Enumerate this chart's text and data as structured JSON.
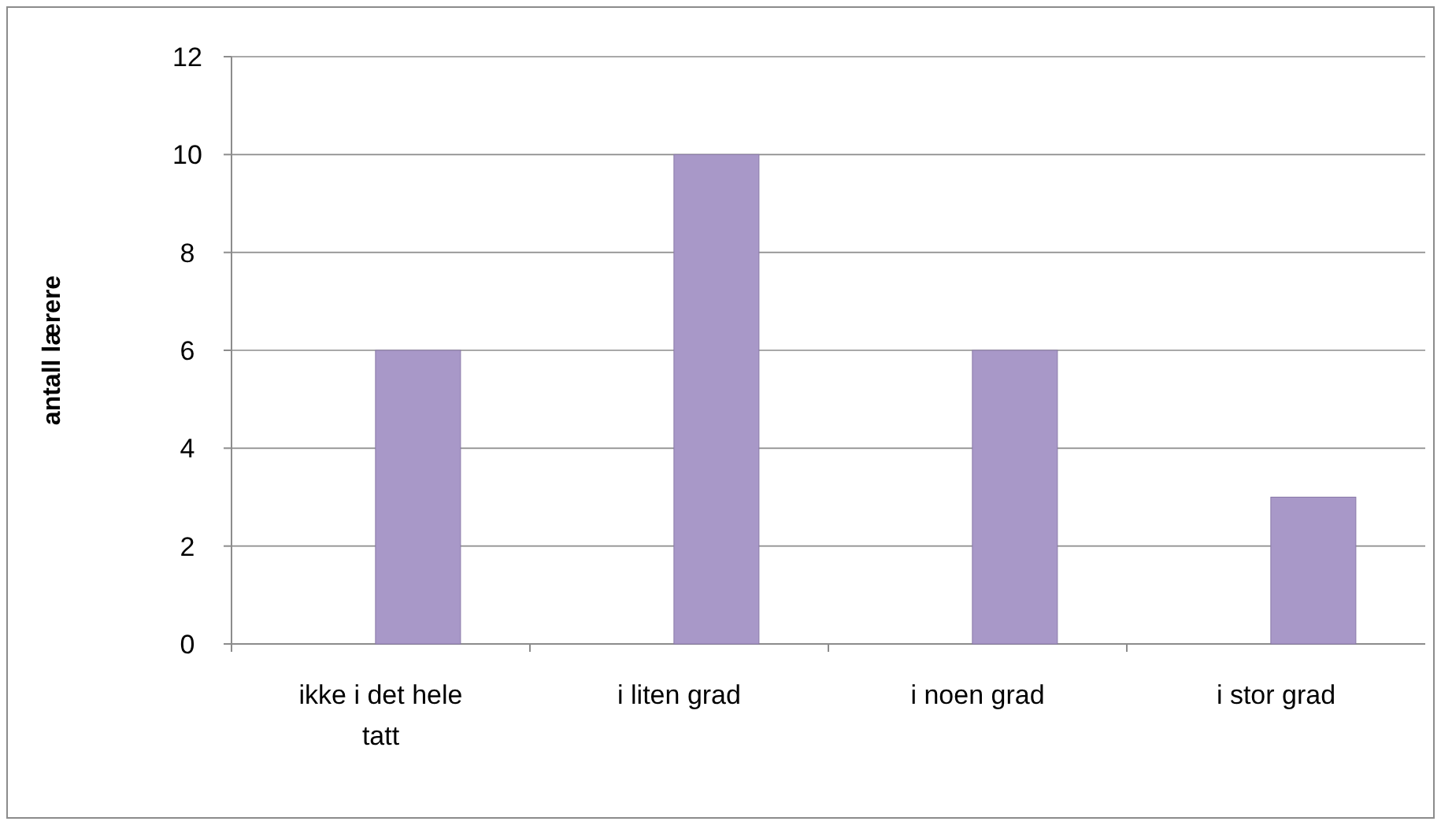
{
  "chart_data": {
    "type": "bar",
    "ylabel": "antall lærere",
    "categories": [
      "ikke i det hele tatt",
      "i liten grad",
      "i noen grad",
      "i stor grad"
    ],
    "values": [
      6,
      10,
      6,
      3
    ],
    "color": "#a898c8",
    "ylim": [
      0,
      12
    ],
    "yticks": [
      0,
      2,
      4,
      6,
      8,
      10,
      12
    ],
    "grid": "y"
  }
}
